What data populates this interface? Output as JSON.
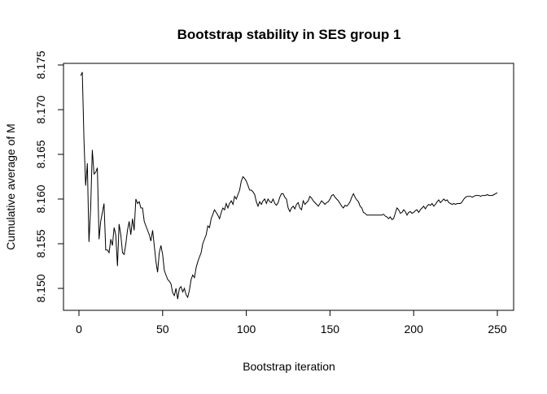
{
  "chart_data": {
    "type": "line",
    "title": "Bootstrap stability in SES group 1",
    "xlabel": "Bootstrap iteration",
    "ylabel": "Cumulative average of M",
    "xlim": [
      0,
      250
    ],
    "ylim": [
      8.148,
      8.175
    ],
    "xticks": [
      0,
      50,
      100,
      150,
      200,
      250
    ],
    "yticks": [
      "8.150",
      "8.155",
      "8.160",
      "8.165",
      "8.170",
      "8.175"
    ],
    "grid": false,
    "line_color": "#000000",
    "x_start": 1,
    "values": [
      8.1738,
      8.1742,
      8.1665,
      8.1615,
      8.164,
      8.1552,
      8.159,
      8.1655,
      8.1628,
      8.163,
      8.1635,
      8.1555,
      8.1575,
      8.1585,
      8.1595,
      8.1543,
      8.1543,
      8.154,
      8.1555,
      8.1548,
      8.1568,
      8.156,
      8.1525,
      8.1572,
      8.156,
      8.154,
      8.1538,
      8.155,
      8.1565,
      8.1575,
      8.156,
      8.1578,
      8.1565,
      8.16,
      8.1595,
      8.1597,
      8.159,
      8.159,
      8.1575,
      8.157,
      8.1565,
      8.156,
      8.1553,
      8.1565,
      8.1548,
      8.153,
      8.1518,
      8.154,
      8.1548,
      8.1538,
      8.152,
      8.1515,
      8.151,
      8.1508,
      8.1505,
      8.1495,
      8.1492,
      8.15,
      8.1488,
      8.15,
      8.1502,
      8.1496,
      8.15,
      8.1493,
      8.149,
      8.1498,
      8.151,
      8.1515,
      8.1512,
      8.1523,
      8.153,
      8.1535,
      8.154,
      8.155,
      8.1555,
      8.156,
      8.157,
      8.1568,
      8.1578,
      8.1583,
      8.1588,
      8.1585,
      8.1582,
      8.1578,
      8.1585,
      8.159,
      8.1588,
      8.1595,
      8.159,
      8.1595,
      8.1598,
      8.1594,
      8.1603,
      8.16,
      8.1605,
      8.161,
      8.162,
      8.1625,
      8.1623,
      8.162,
      8.1615,
      8.161,
      8.161,
      8.1608,
      8.1605,
      8.1597,
      8.1592,
      8.1597,
      8.1594,
      8.1598,
      8.16,
      8.1595,
      8.16,
      8.1597,
      8.1596,
      8.16,
      8.1595,
      8.1593,
      8.1596,
      8.1602,
      8.1606,
      8.1606,
      8.1602,
      8.16,
      8.159,
      8.1586,
      8.159,
      8.1592,
      8.1589,
      8.1594,
      8.1596,
      8.159,
      8.1588,
      8.1598,
      8.1594,
      8.1596,
      8.1598,
      8.1603,
      8.1601,
      8.1598,
      8.1596,
      8.1594,
      8.1592,
      8.1595,
      8.1598,
      8.1596,
      8.1594,
      8.1596,
      8.1597,
      8.16,
      8.1604,
      8.1605,
      8.1602,
      8.16,
      8.1598,
      8.1595,
      8.1592,
      8.159,
      8.1593,
      8.1592,
      8.1594,
      8.1597,
      8.1602,
      8.1606,
      8.1602,
      8.1599,
      8.1597,
      8.1592,
      8.159,
      8.1585,
      8.1584,
      8.1582,
      8.1582,
      8.1582,
      8.1582,
      8.1582,
      8.1582,
      8.1582,
      8.1582,
      8.1582,
      8.1582,
      8.1583,
      8.1581,
      8.158,
      8.1578,
      8.158,
      8.1577,
      8.1578,
      8.1584,
      8.159,
      8.1588,
      8.1584,
      8.1585,
      8.1588,
      8.1586,
      8.1582,
      8.1585,
      8.1586,
      8.1584,
      8.1585,
      8.1587,
      8.1588,
      8.1585,
      8.1588,
      8.159,
      8.1592,
      8.1589,
      8.1592,
      8.1594,
      8.1593,
      8.1595,
      8.1592,
      8.1594,
      8.1597,
      8.1599,
      8.1596,
      8.1598,
      8.16,
      8.1598,
      8.1599,
      8.1596,
      8.1595,
      8.1594,
      8.1595,
      8.1594,
      8.1595,
      8.1595,
      8.1595,
      8.1597,
      8.16,
      8.1602,
      8.1603,
      8.1603,
      8.1603,
      8.1602,
      8.1603,
      8.1604,
      8.1604,
      8.1604,
      8.1603,
      8.1604,
      8.1604,
      8.1604,
      8.1605,
      8.1604,
      8.1604,
      8.1604,
      8.1605,
      8.1606,
      8.1607
    ]
  }
}
